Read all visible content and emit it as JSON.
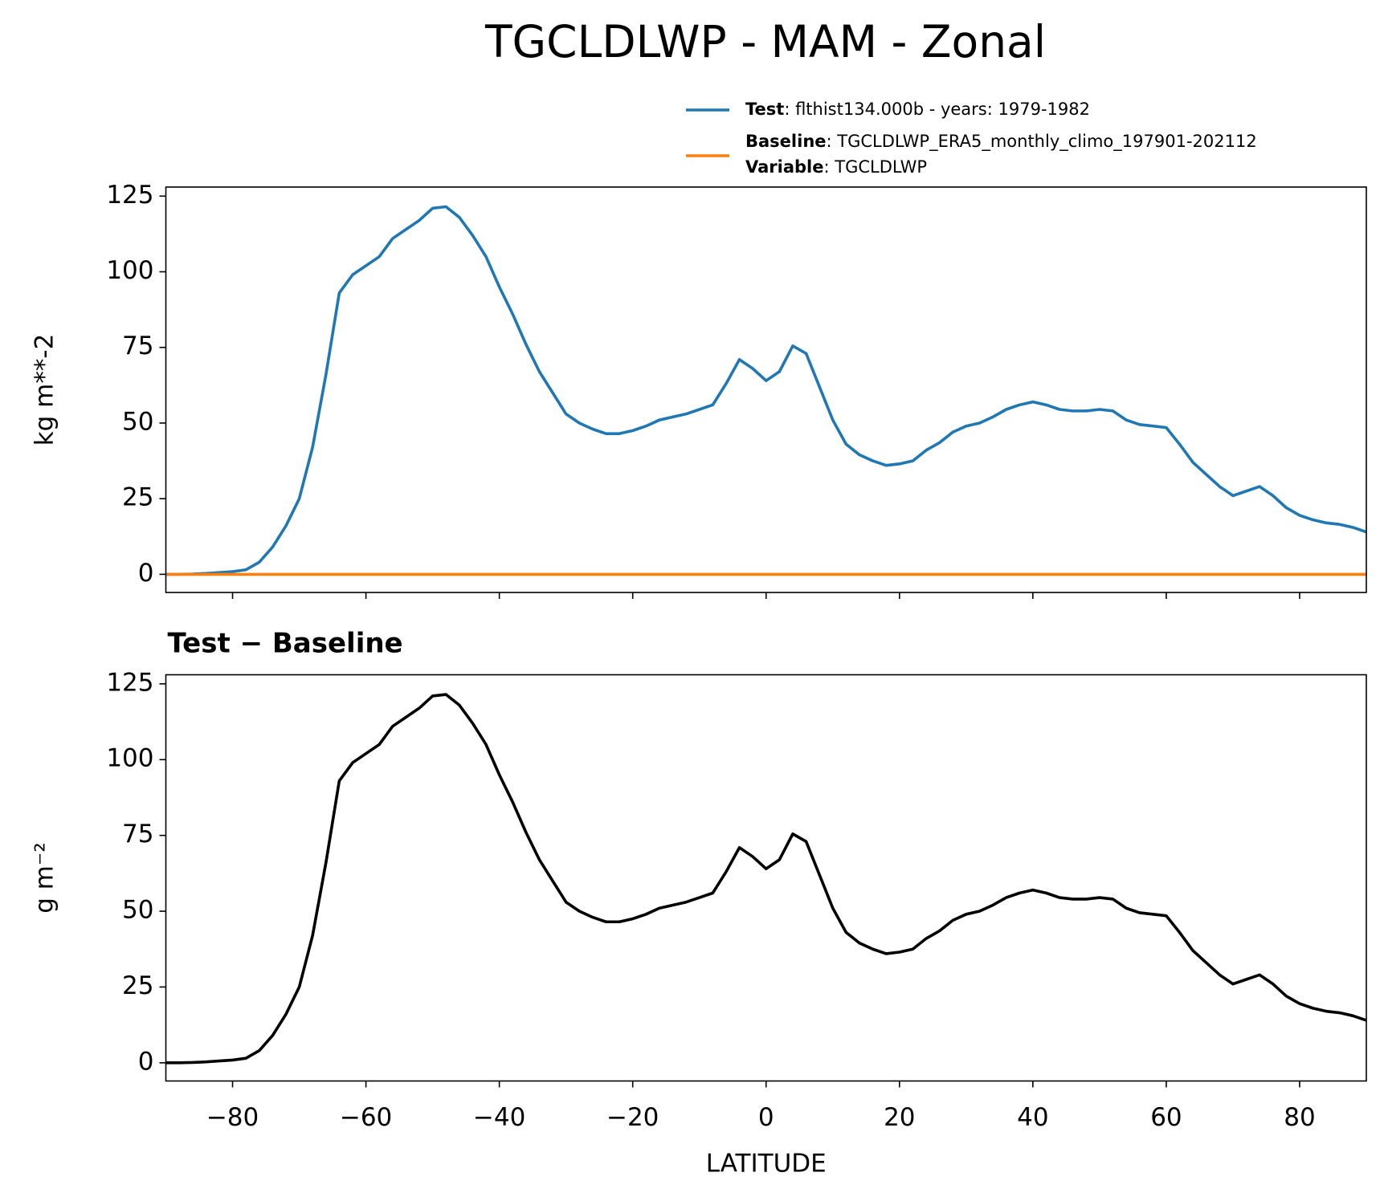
{
  "title": "TGCLDLWP - MAM - Zonal",
  "chart_data": [
    {
      "type": "line",
      "ylabel": "kg m**-2",
      "xlim": [
        -90,
        90
      ],
      "ylim": [
        -6,
        128
      ],
      "xticks": [
        -80,
        -60,
        -40,
        -20,
        0,
        20,
        40,
        60,
        80
      ],
      "yticks": [
        0,
        25,
        50,
        75,
        100,
        125
      ],
      "x": [
        -90,
        -88,
        -86,
        -84,
        -82,
        -80,
        -78,
        -76,
        -74,
        -72,
        -70,
        -68,
        -66,
        -64,
        -62,
        -60,
        -58,
        -56,
        -54,
        -52,
        -50,
        -48,
        -46,
        -44,
        -42,
        -40,
        -38,
        -36,
        -34,
        -32,
        -30,
        -28,
        -26,
        -24,
        -22,
        -20,
        -18,
        -16,
        -14,
        -12,
        -10,
        -8,
        -6,
        -4,
        -2,
        0,
        2,
        4,
        6,
        8,
        10,
        12,
        14,
        16,
        18,
        20,
        22,
        24,
        26,
        28,
        30,
        32,
        34,
        36,
        38,
        40,
        42,
        44,
        46,
        48,
        50,
        52,
        54,
        56,
        58,
        60,
        62,
        64,
        66,
        68,
        70,
        72,
        74,
        76,
        78,
        80,
        82,
        84,
        86,
        88,
        90
      ],
      "series": [
        {
          "name": "Test",
          "description": ": flthist134.000b - years: 1979-1982",
          "color": "#1f77b4",
          "values": [
            0,
            0,
            0.1,
            0.3,
            0.6,
            0.9,
            1.5,
            4,
            9,
            16,
            25,
            42,
            66,
            93,
            99,
            102,
            105,
            111,
            114,
            117,
            121,
            121.5,
            118,
            112,
            105,
            95,
            86,
            76,
            67,
            60,
            53,
            50,
            48,
            46.5,
            46.5,
            47.5,
            49,
            51,
            52,
            53,
            54.5,
            56,
            63,
            71,
            68,
            64,
            67,
            75.5,
            73,
            62,
            51,
            43,
            39.5,
            37.5,
            36,
            36.5,
            37.5,
            41,
            43.5,
            47,
            49,
            50,
            52,
            54.5,
            56,
            57,
            56,
            54.5,
            54,
            54,
            54.5,
            54,
            51,
            49.5,
            49,
            48.5,
            43,
            37,
            33,
            29,
            26,
            27.5,
            29,
            26,
            22,
            19.5,
            18,
            17,
            16.5,
            15.5,
            14
          ]
        },
        {
          "name": "Baseline",
          "description": ": TGCLDLWP_ERA5_monthly_climo_197901-202112",
          "color": "#ff7f0e",
          "variable": {
            "name": "Variable",
            "description": ": TGCLDLWP"
          },
          "values": [
            0,
            0,
            0,
            0,
            0,
            0,
            0,
            0,
            0,
            0,
            0,
            0,
            0,
            0,
            0,
            0,
            0,
            0,
            0,
            0,
            0,
            0,
            0,
            0,
            0,
            0,
            0,
            0,
            0,
            0,
            0,
            0,
            0,
            0,
            0,
            0,
            0,
            0,
            0,
            0,
            0,
            0,
            0,
            0,
            0,
            0,
            0,
            0,
            0,
            0,
            0,
            0,
            0,
            0,
            0,
            0,
            0,
            0,
            0,
            0,
            0,
            0,
            0,
            0,
            0,
            0,
            0,
            0,
            0,
            0,
            0,
            0,
            0,
            0,
            0,
            0,
            0,
            0,
            0,
            0,
            0,
            0,
            0,
            0,
            0,
            0,
            0,
            0,
            0,
            0,
            0
          ]
        }
      ]
    },
    {
      "type": "line",
      "title": "Test − Baseline",
      "ylabel": "g m⁻²",
      "xlabel": "LATITUDE",
      "xlim": [
        -90,
        90
      ],
      "ylim": [
        -6,
        128
      ],
      "xticks": [
        {
          "value": -80,
          "label": "−80"
        },
        {
          "value": -60,
          "label": "−60"
        },
        {
          "value": -40,
          "label": "−40"
        },
        {
          "value": -20,
          "label": "−20"
        },
        0,
        20,
        40,
        60,
        80
      ],
      "yticks": [
        0,
        25,
        50,
        75,
        100,
        125
      ],
      "x": [
        -90,
        -88,
        -86,
        -84,
        -82,
        -80,
        -78,
        -76,
        -74,
        -72,
        -70,
        -68,
        -66,
        -64,
        -62,
        -60,
        -58,
        -56,
        -54,
        -52,
        -50,
        -48,
        -46,
        -44,
        -42,
        -40,
        -38,
        -36,
        -34,
        -32,
        -30,
        -28,
        -26,
        -24,
        -22,
        -20,
        -18,
        -16,
        -14,
        -12,
        -10,
        -8,
        -6,
        -4,
        -2,
        0,
        2,
        4,
        6,
        8,
        10,
        12,
        14,
        16,
        18,
        20,
        22,
        24,
        26,
        28,
        30,
        32,
        34,
        36,
        38,
        40,
        42,
        44,
        46,
        48,
        50,
        52,
        54,
        56,
        58,
        60,
        62,
        64,
        66,
        68,
        70,
        72,
        74,
        76,
        78,
        80,
        82,
        84,
        86,
        88,
        90
      ],
      "series": [
        {
          "color": "#000000",
          "values": [
            0,
            0,
            0.1,
            0.3,
            0.6,
            0.9,
            1.5,
            4,
            9,
            16,
            25,
            42,
            66,
            93,
            99,
            102,
            105,
            111,
            114,
            117,
            121,
            121.5,
            118,
            112,
            105,
            95,
            86,
            76,
            67,
            60,
            53,
            50,
            48,
            46.5,
            46.5,
            47.5,
            49,
            51,
            52,
            53,
            54.5,
            56,
            63,
            71,
            68,
            64,
            67,
            75.5,
            73,
            62,
            51,
            43,
            39.5,
            37.5,
            36,
            36.5,
            37.5,
            41,
            43.5,
            47,
            49,
            50,
            52,
            54.5,
            56,
            57,
            56,
            54.5,
            54,
            54,
            54.5,
            54,
            51,
            49.5,
            49,
            48.5,
            43,
            37,
            33,
            29,
            26,
            27.5,
            29,
            26,
            22,
            19.5,
            18,
            17,
            16.5,
            15.5,
            14
          ]
        }
      ]
    }
  ]
}
